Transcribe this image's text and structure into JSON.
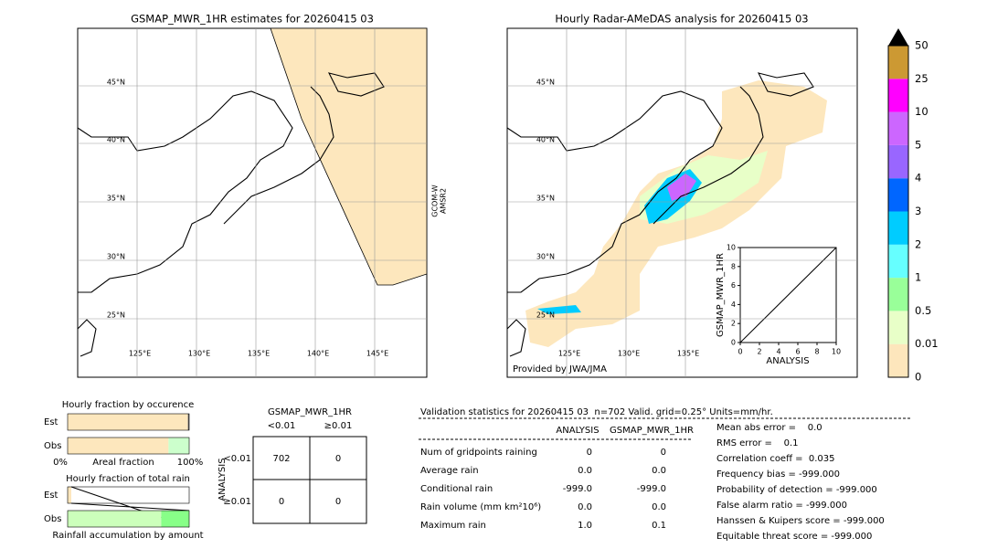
{
  "left_map": {
    "title": "GSMAP_MWR_1HR estimates for 20260415 03",
    "lat_labels": [
      "45°N",
      "40°N",
      "35°N",
      "30°N",
      "25°N"
    ],
    "lon_labels": [
      "125°E",
      "130°E",
      "135°E",
      "140°E",
      "145°E"
    ],
    "satellite_label": [
      "GCOM-W",
      "AMSR2"
    ]
  },
  "right_map": {
    "title": "Hourly Radar-AMeDAS analysis for 20260415 03",
    "lat_labels": [
      "45°N",
      "40°N",
      "35°N",
      "30°N",
      "25°N"
    ],
    "lon_labels": [
      "125°E",
      "130°E",
      "135°E"
    ],
    "credit": "Provided by JWA/JMA"
  },
  "colorbar": {
    "levels": [
      0,
      0.01,
      0.5,
      1,
      2,
      3,
      4,
      5,
      10,
      25,
      50
    ],
    "colors": [
      "#fde6bc",
      "#e8ffc8",
      "#99ff99",
      "#66ffff",
      "#00ccff",
      "#0066ff",
      "#9966ff",
      "#cc66ff",
      "#ff00ff",
      "#cc9933"
    ]
  },
  "scatter": {
    "xlabel": "ANALYSIS",
    "ylabel": "GSMAP_MWR_1HR",
    "xlim": [
      0,
      10
    ],
    "ylim": [
      0,
      10
    ],
    "xticks": [
      0,
      2,
      4,
      6,
      8,
      10
    ],
    "yticks": [
      0,
      2,
      4,
      6,
      8,
      10
    ]
  },
  "occurrence": {
    "title": "Hourly fraction by occurence",
    "rows": [
      "Est",
      "Obs"
    ],
    "segments": [
      [
        {
          "value": 99,
          "color": "#fde7bd"
        },
        {
          "value": 1,
          "color": "#555555"
        }
      ],
      [
        {
          "value": 83,
          "color": "#fde7bd"
        },
        {
          "value": 17,
          "color": "#ccffcc"
        }
      ]
    ],
    "xlabel": "Areal fraction",
    "xmin_label": "0%",
    "xmax_label": "100%"
  },
  "total_rain": {
    "title": "Hourly fraction of total rain",
    "rows": [
      "Est",
      "Obs"
    ],
    "segments": [
      [
        {
          "value": 3,
          "color": "#fde7bd"
        }
      ],
      [
        {
          "value": 77,
          "color": "#ccffbb"
        },
        {
          "value": 23,
          "color": "#88ff88"
        }
      ]
    ],
    "xlabel": "Rainfall accumulation by amount"
  },
  "contingency": {
    "title": "GSMAP_MWR_1HR",
    "columns": [
      "<0.01",
      "≥0.01"
    ],
    "ylabel": "ANALYSIS",
    "rows": [
      "<0.01",
      "≥0.01"
    ],
    "cells": [
      [
        702,
        0
      ],
      [
        0,
        0
      ]
    ]
  },
  "validation": {
    "header": "Validation statistics for 20260415 03  n=702 Valid. grid=0.25° Units=mm/hr.",
    "columns": [
      "ANALYSIS",
      "GSMAP_MWR_1HR"
    ],
    "rows": [
      {
        "label": "Num of gridpoints raining",
        "values": [
          "0",
          "0"
        ]
      },
      {
        "label": "Average rain",
        "values": [
          "0.0",
          "0.0"
        ]
      },
      {
        "label": "Conditional rain",
        "values": [
          "-999.0",
          "-999.0"
        ]
      },
      {
        "label": "Rain volume (mm km²10⁶)",
        "values": [
          "0.0",
          "0.0"
        ]
      },
      {
        "label": "Maximum rain",
        "values": [
          "1.0",
          "0.1"
        ]
      }
    ]
  },
  "scores": [
    "Mean abs error =    0.0",
    "RMS error =    0.1",
    "Correlation coeff =  0.035",
    "Frequency bias = -999.000",
    "Probability of detection = -999.000",
    "False alarm ratio = -999.000",
    "Hanssen & Kuipers score = -999.000",
    "Equitable threat score = -999.000"
  ]
}
